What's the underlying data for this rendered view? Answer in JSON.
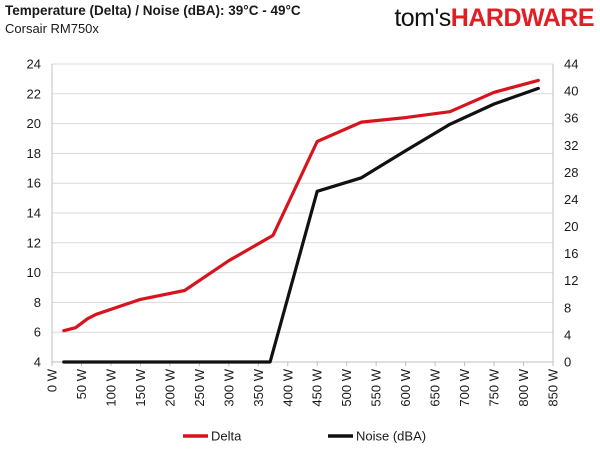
{
  "chart_data": {
    "type": "line",
    "title": "Temperature (Delta) / Noise (dBA): 39°C - 49°C",
    "subtitle": "Corsair RM750x",
    "brand": {
      "part1": "tom's",
      "part2": "HARDWARE"
    },
    "x_ticks": [
      "0 W",
      "50 W",
      "100 W",
      "150 W",
      "200 W",
      "250 W",
      "300 W",
      "350 W",
      "400 W",
      "450 W",
      "500 W",
      "550 W",
      "600 W",
      "650 W",
      "700 W",
      "750 W",
      "800 W",
      "850 W"
    ],
    "xlim": [
      0,
      850
    ],
    "y_left": {
      "lim": [
        4,
        24
      ],
      "ticks": [
        "4",
        "6",
        "8",
        "10",
        "12",
        "14",
        "16",
        "18",
        "20",
        "22",
        "24"
      ]
    },
    "y_right": {
      "lim": [
        0,
        44
      ],
      "ticks": [
        "0",
        "4",
        "8",
        "12",
        "16",
        "20",
        "24",
        "28",
        "32",
        "36",
        "40",
        "44"
      ]
    },
    "grid": "horizontal",
    "legend_position": "bottom",
    "series": [
      {
        "name": "Delta",
        "axis": "left",
        "color": "#d7141e",
        "x": [
          20,
          40,
          60,
          75,
          150,
          225,
          300,
          375,
          450,
          525,
          600,
          675,
          750,
          825
        ],
        "y": [
          6.1,
          6.3,
          6.9,
          7.2,
          8.2,
          8.8,
          10.8,
          12.5,
          18.8,
          20.1,
          20.4,
          20.8,
          22.1,
          22.9
        ]
      },
      {
        "name": "Noise (dBA)",
        "axis": "right",
        "color": "#111111",
        "x": [
          20,
          75,
          150,
          225,
          300,
          370,
          450,
          525,
          600,
          675,
          750,
          825
        ],
        "y": [
          0,
          0,
          0,
          0,
          0,
          0,
          25.2,
          27.2,
          31.2,
          35.1,
          38.1,
          40.4
        ]
      }
    ]
  }
}
